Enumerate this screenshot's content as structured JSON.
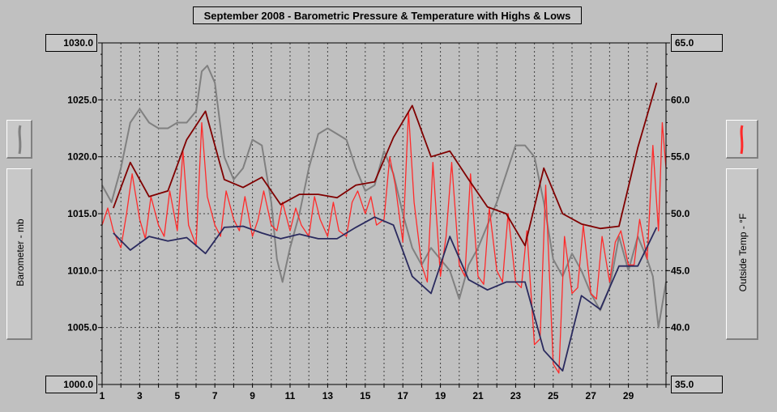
{
  "chart_data": {
    "type": "line",
    "title": "September 2008 - Barometric Pressure & Temperature with Highs & Lows",
    "left_axis": {
      "label": "Barometer - mb",
      "ylim": [
        1000,
        1030
      ],
      "ticks": [
        "1030.0",
        "1025.0",
        "1020.0",
        "1015.0",
        "1010.0",
        "1005.0",
        "1000.0"
      ],
      "tick_values": [
        1030,
        1025,
        1020,
        1015,
        1010,
        1005,
        1000
      ]
    },
    "right_axis": {
      "label": "Outside Temp - °F",
      "ylim": [
        35,
        65
      ],
      "ticks": [
        "65.0",
        "60.0",
        "55.0",
        "50.0",
        "45.0",
        "40.0",
        "35.0"
      ],
      "tick_values": [
        65,
        60,
        55,
        50,
        45,
        40,
        35
      ]
    },
    "x_axis": {
      "xlim": [
        1,
        31
      ],
      "ticks": [
        "1",
        "3",
        "5",
        "7",
        "9",
        "11",
        "13",
        "15",
        "17",
        "19",
        "21",
        "23",
        "25",
        "27",
        "29"
      ],
      "tick_values": [
        1,
        3,
        5,
        7,
        9,
        11,
        13,
        15,
        17,
        19,
        21,
        23,
        25,
        27,
        29
      ]
    },
    "grid": true,
    "series": [
      {
        "key": "barometer",
        "axis": "left",
        "color": "#808080",
        "x": [
          1.0,
          1.5,
          2.0,
          2.5,
          3.0,
          3.5,
          4.0,
          4.5,
          5.0,
          5.5,
          6.0,
          6.3,
          6.6,
          7.0,
          7.5,
          8.0,
          8.5,
          9.0,
          9.5,
          10.0,
          10.3,
          10.6,
          11.0,
          11.5,
          12.0,
          12.5,
          13.0,
          13.5,
          14.0,
          14.5,
          15.0,
          15.5,
          16.0,
          16.5,
          17.0,
          17.5,
          18.0,
          18.5,
          19.0,
          19.5,
          20.0,
          20.5,
          21.0,
          21.5,
          22.0,
          22.5,
          23.0,
          23.5,
          24.0,
          24.5,
          25.0,
          25.5,
          26.0,
          26.5,
          27.0,
          27.5,
          28.0,
          28.5,
          29.0,
          29.5,
          30.0,
          30.3,
          30.6,
          31.0
        ],
        "values": [
          1017.5,
          1016.0,
          1019.0,
          1023.0,
          1024.2,
          1023.0,
          1022.5,
          1022.5,
          1023.0,
          1023.0,
          1024.0,
          1027.5,
          1028.0,
          1026.5,
          1020.0,
          1018.0,
          1019.0,
          1021.5,
          1021.0,
          1016.0,
          1011.0,
          1009.0,
          1012.0,
          1015.0,
          1019.0,
          1022.0,
          1022.5,
          1022.0,
          1021.5,
          1019.0,
          1017.0,
          1017.5,
          1020.5,
          1018.5,
          1015.0,
          1012.0,
          1010.5,
          1012.0,
          1011.0,
          1010.0,
          1007.5,
          1010.5,
          1012.0,
          1014.0,
          1016.0,
          1018.5,
          1021.0,
          1021.0,
          1020.0,
          1016.0,
          1011.0,
          1009.5,
          1011.5,
          1010.0,
          1008.0,
          1006.5,
          1008.5,
          1013.0,
          1010.0,
          1013.0,
          1011.0,
          1009.5,
          1005.0,
          1009.0
        ]
      },
      {
        "key": "temperature",
        "axis": "right",
        "color": "#ff2a2a",
        "x": [
          1.0,
          1.3,
          1.6,
          2.0,
          2.3,
          2.6,
          3.0,
          3.3,
          3.6,
          4.0,
          4.3,
          4.6,
          5.0,
          5.3,
          5.6,
          6.0,
          6.3,
          6.6,
          7.0,
          7.3,
          7.6,
          8.0,
          8.3,
          8.6,
          9.0,
          9.3,
          9.6,
          10.0,
          10.3,
          10.6,
          11.0,
          11.3,
          11.6,
          12.0,
          12.3,
          12.6,
          13.0,
          13.3,
          13.6,
          14.0,
          14.3,
          14.6,
          15.0,
          15.3,
          15.6,
          16.0,
          16.3,
          16.6,
          17.0,
          17.3,
          17.6,
          18.0,
          18.3,
          18.6,
          19.0,
          19.3,
          19.6,
          20.0,
          20.3,
          20.6,
          21.0,
          21.3,
          21.6,
          22.0,
          22.3,
          22.6,
          23.0,
          23.3,
          23.6,
          24.0,
          24.3,
          24.6,
          25.0,
          25.3,
          25.6,
          26.0,
          26.3,
          26.6,
          27.0,
          27.3,
          27.6,
          28.0,
          28.3,
          28.6,
          29.0,
          29.3,
          29.6,
          30.0,
          30.3,
          30.6,
          30.8,
          31.0
        ],
        "values": [
          49.0,
          50.5,
          48.5,
          47.0,
          50.0,
          53.5,
          49.5,
          47.8,
          51.5,
          49.0,
          48.0,
          52.0,
          48.5,
          55.5,
          49.0,
          47.2,
          58.0,
          51.5,
          49.0,
          48.0,
          52.0,
          49.5,
          48.5,
          51.5,
          48.0,
          49.5,
          52.0,
          49.0,
          48.5,
          51.0,
          48.5,
          50.5,
          49.0,
          48.0,
          51.5,
          49.5,
          48.0,
          51.0,
          48.5,
          48.0,
          51.0,
          52.0,
          50.0,
          51.5,
          49.0,
          49.5,
          55.0,
          52.5,
          47.5,
          59.0,
          51.0,
          45.5,
          44.0,
          54.5,
          44.5,
          48.0,
          54.5,
          45.5,
          44.5,
          53.5,
          44.5,
          43.8,
          50.5,
          45.0,
          44.0,
          50.0,
          44.0,
          43.5,
          48.5,
          38.5,
          39.0,
          52.5,
          36.8,
          36.0,
          48.0,
          43.0,
          43.5,
          49.0,
          43.0,
          42.5,
          48.0,
          44.0,
          47.5,
          48.5,
          45.5,
          45.5,
          49.5,
          46.0,
          56.0,
          48.5,
          58.0,
          54.0
        ]
      },
      {
        "key": "temp_highs",
        "axis": "right",
        "color": "#800000",
        "x": [
          1.6,
          2.5,
          3.5,
          4.5,
          5.5,
          6.5,
          7.5,
          8.5,
          9.5,
          10.5,
          11.5,
          12.5,
          13.5,
          14.5,
          15.5,
          16.5,
          17.5,
          18.5,
          19.5,
          20.5,
          21.5,
          22.5,
          23.5,
          24.5,
          25.5,
          26.5,
          27.5,
          28.5,
          29.5,
          30.5
        ],
        "values": [
          50.5,
          54.5,
          51.5,
          52.0,
          56.5,
          59.0,
          53.0,
          52.3,
          53.2,
          50.8,
          51.7,
          51.7,
          51.4,
          52.5,
          52.8,
          56.7,
          59.5,
          55.0,
          55.5,
          53.0,
          50.6,
          50.0,
          47.2,
          54.0,
          50.0,
          49.1,
          48.7,
          48.9,
          55.8,
          61.5
        ]
      },
      {
        "key": "temp_lows",
        "axis": "right",
        "color": "#2a2a5e",
        "x": [
          1.6,
          2.5,
          3.5,
          4.5,
          5.5,
          6.5,
          7.5,
          8.5,
          9.5,
          10.5,
          11.5,
          12.5,
          13.5,
          14.5,
          15.5,
          16.5,
          17.5,
          18.5,
          19.5,
          20.5,
          21.5,
          22.5,
          23.5,
          24.5,
          25.5,
          26.5,
          27.5,
          28.5,
          29.5,
          30.5
        ],
        "values": [
          48.3,
          46.8,
          48.0,
          47.6,
          47.9,
          46.5,
          48.8,
          48.9,
          48.3,
          47.8,
          48.2,
          47.8,
          47.8,
          48.8,
          49.7,
          49.0,
          44.5,
          43.0,
          48.0,
          44.2,
          43.3,
          44.0,
          44.0,
          38.0,
          36.2,
          42.8,
          41.6,
          45.4,
          45.4,
          48.8
        ]
      }
    ]
  }
}
